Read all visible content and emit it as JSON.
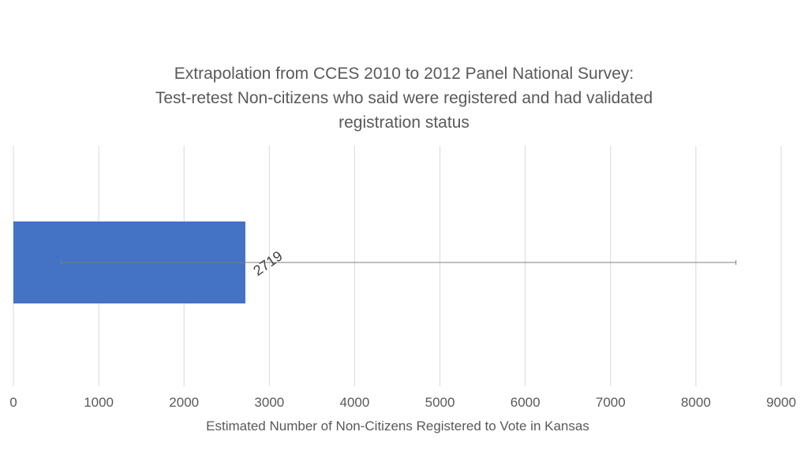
{
  "chart_data": {
    "type": "bar",
    "orientation": "horizontal",
    "title_lines": [
      "Extrapolation from CCES 2010 to 2012 Panel National Survey:",
      "Test-retest Non-citizens who said were registered and had validated",
      "registration status"
    ],
    "xlabel": "Estimated Number of Non-Citizens Registered to Vote in Kansas",
    "ylabel": "",
    "xlim": [
      0,
      9000
    ],
    "x_ticks": [
      0,
      1000,
      2000,
      3000,
      4000,
      5000,
      6000,
      7000,
      8000,
      9000
    ],
    "x_tick_labels": [
      "0",
      "1000",
      "2000",
      "3000",
      "4000",
      "5000",
      "6000",
      "7000",
      "8000",
      "9000"
    ],
    "grid": "vertical",
    "legend": "none",
    "bar_color": "#4472C4",
    "series": [
      {
        "values": [
          2719
        ],
        "data_labels": [
          "2719"
        ],
        "error_low": [
          560
        ],
        "error_high": [
          8470
        ]
      }
    ]
  }
}
